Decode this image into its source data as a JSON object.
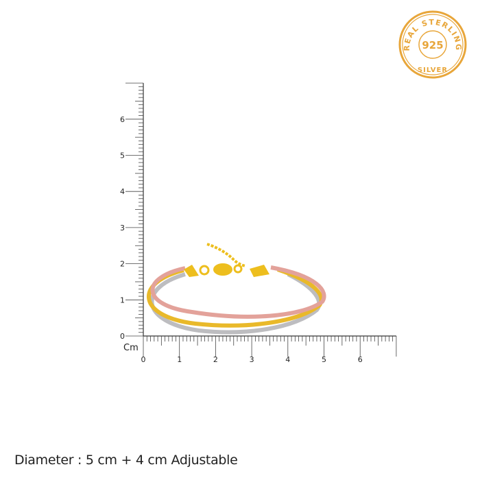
{
  "ruler": {
    "unit_label": "Cm",
    "x_tick_labels": [
      "0",
      "1",
      "2",
      "3",
      "4",
      "5",
      "6"
    ],
    "y_tick_labels": [
      "0",
      "1",
      "2",
      "3",
      "4",
      "5",
      "6"
    ],
    "x_max_cm": 7,
    "y_max_cm": 7,
    "minor_ticks_per_cm": 10
  },
  "stamp": {
    "top_text": "REAL STERLING",
    "center_text": "925",
    "bottom_text": "SILVER",
    "color": "#E8A63A"
  },
  "product": {
    "strand_colors": [
      "#C9C9CB",
      "#E9B92A",
      "#E3A29A"
    ],
    "clasp_color": "#EDBE1E"
  },
  "caption": "Diameter : 5 cm + 4 cm Adjustable"
}
